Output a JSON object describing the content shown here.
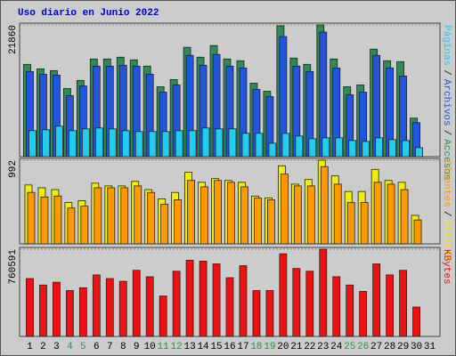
{
  "chart_data": [
    {
      "type": "bar",
      "title": "Uso diario en Junio 2022",
      "legend_separator": "/",
      "ylim": [
        0,
        21860
      ],
      "yticks": [
        21860
      ],
      "series": [
        {
          "name": "Accesos",
          "color": "#2e8b57",
          "values": [
            15316,
            14573,
            14275,
            11301,
            12640,
            16208,
            16208,
            16506,
            16060,
            15019,
            11599,
            12788,
            18141,
            16506,
            18439,
            16208,
            15911,
            12193,
            10855,
            21710,
            16357,
            15316,
            21860,
            16208,
            11599,
            11896,
            17844,
            15911,
            15762,
            6394,
            null
          ]
        },
        {
          "name": "Archivos",
          "color": "#2255dd",
          "values": [
            14127,
            13680,
            13532,
            10112,
            11747,
            15019,
            15019,
            15167,
            15019,
            13680,
            10706,
            11896,
            16803,
            15167,
            16952,
            15019,
            14721,
            11153,
            9963,
            19926,
            15019,
            14127,
            20669,
            14721,
            10260,
            10706,
            16803,
            14721,
            13383,
            5651,
            null
          ]
        },
        {
          "name": "Páginas",
          "color": "#22ccee",
          "values": [
            4312,
            4461,
            5056,
            4312,
            4610,
            4758,
            4610,
            4312,
            4164,
            4164,
            4164,
            4312,
            4312,
            4758,
            4610,
            4610,
            3866,
            3866,
            2231,
            3866,
            3420,
            2974,
            3123,
            3123,
            2677,
            2528,
            3123,
            2825,
            2677,
            1487,
            null
          ]
        }
      ]
    },
    {
      "type": "bar",
      "legend_separator": "/",
      "ylim": [
        0,
        992
      ],
      "yticks": [
        992
      ],
      "series": [
        {
          "name": "Visitas",
          "color": "#eeee11",
          "values": [
            698,
            665,
            643,
            490,
            512,
            719,
            687,
            687,
            741,
            643,
            534,
            610,
            850,
            730,
            774,
            752,
            730,
            567,
            545,
            926,
            708,
            763,
            992,
            806,
            621,
            621,
            883,
            752,
            730,
            338,
            null
          ]
        },
        {
          "name": "Clientes",
          "color": "#ff9900",
          "values": [
            610,
            556,
            567,
            425,
            447,
            665,
            665,
            665,
            687,
            610,
            469,
            523,
            752,
            676,
            752,
            730,
            676,
            545,
            523,
            828,
            687,
            687,
            916,
            708,
            490,
            490,
            730,
            708,
            643,
            283,
            null
          ]
        }
      ]
    },
    {
      "type": "bar",
      "ylim": [
        0,
        760591
      ],
      "yticks": [
        760591
      ],
      "categories": [
        "1",
        "2",
        "3",
        "4",
        "5",
        "6",
        "7",
        "8",
        "9",
        "10",
        "11",
        "12",
        "13",
        "14",
        "15",
        "16",
        "17",
        "18",
        "19",
        "20",
        "21",
        "22",
        "23",
        "24",
        "25",
        "26",
        "27",
        "28",
        "29",
        "30",
        "31"
      ],
      "category_colors": [
        "#000000",
        "#000000",
        "#000000",
        "#2e8b57",
        "#2e8b57",
        "#000000",
        "#000000",
        "#000000",
        "#000000",
        "#000000",
        "#2e8b57",
        "#2e8b57",
        "#000000",
        "#000000",
        "#000000",
        "#000000",
        "#000000",
        "#2e8b57",
        "#2e8b57",
        "#000000",
        "#000000",
        "#000000",
        "#000000",
        "#000000",
        "#2e8b57",
        "#2e8b57",
        "#000000",
        "#000000",
        "#000000",
        "#000000",
        "#000000"
      ],
      "series": [
        {
          "name": "KBytes",
          "color": "#ee1111",
          "values": [
            504378,
            448336,
            472354,
            400300,
            424318,
            536402,
            504378,
            480360,
            576432,
            520390,
            352264,
            568426,
            664498,
            656492,
            632474,
            512384,
            616462,
            400300,
            400300,
            720540,
            592444,
            568426,
            760591,
            520390,
            448336,
            392294,
            632474,
            536402,
            576432,
            256192,
            null
          ]
        }
      ]
    }
  ]
}
